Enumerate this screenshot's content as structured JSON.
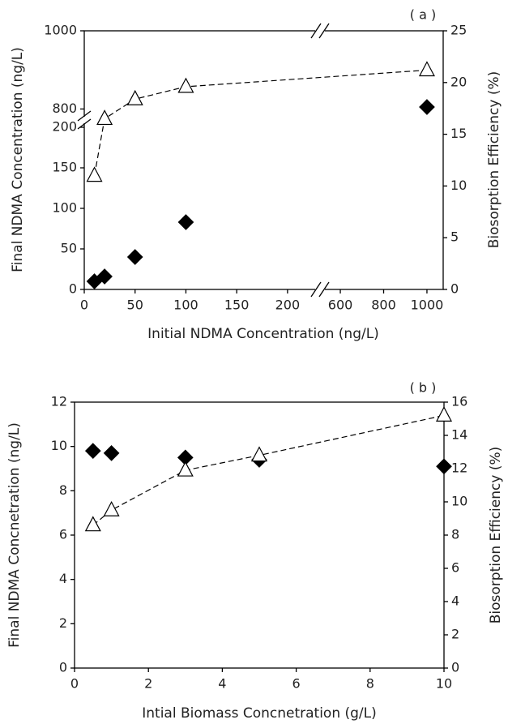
{
  "chart_data": [
    {
      "type": "scatter",
      "panel_label": "( a )",
      "x_label": "Initial NDMA Concentration (ng/L)",
      "y_label": "Final NDMA Concentration (ng/L)",
      "y2_label": "Biosorption Efficiency (%)",
      "x": [
        10,
        20,
        50,
        100,
        1000
      ],
      "x_segments": [
        {
          "xlim": [
            0,
            228
          ],
          "xticks": [
            0,
            50,
            100,
            150,
            200
          ]
        },
        {
          "xlim": [
            525,
            1075
          ],
          "xticks": [
            600,
            800,
            1000
          ]
        }
      ],
      "y_segments": [
        {
          "ylim": [
            0,
            207
          ],
          "yticks": [
            0,
            50,
            100,
            150,
            200
          ]
        },
        {
          "ylim": [
            776,
            1000
          ],
          "yticks": [
            800,
            1000
          ]
        }
      ],
      "y2lim": [
        0,
        25
      ],
      "y2ticks": [
        0,
        5,
        10,
        15,
        20,
        25
      ],
      "series": [
        {
          "marker": "diamond",
          "color": "#000000",
          "values": [
            10,
            16,
            40,
            83,
            805
          ]
        },
        {
          "marker": "triangle",
          "color": "#ffffff",
          "axis": "y2",
          "line": "dashed",
          "values": [
            11.0,
            16.5,
            18.4,
            19.6,
            21.2
          ]
        }
      ]
    },
    {
      "type": "scatter",
      "panel_label": "( b )",
      "x_label": "Intial Biomass Concnetration (g/L)",
      "y_label": "Final NDMA Concnetration (ng/L)",
      "y2_label": "Biosorption Efficiency (%)",
      "x": [
        0.5,
        1,
        3,
        5,
        10
      ],
      "xlim": [
        0,
        10
      ],
      "xticks": [
        0,
        2,
        4,
        6,
        8,
        10
      ],
      "ylim": [
        0,
        12
      ],
      "yticks": [
        0,
        2,
        4,
        6,
        8,
        10,
        12
      ],
      "y2lim": [
        0,
        16
      ],
      "y2ticks": [
        0,
        2,
        4,
        6,
        8,
        10,
        12,
        14,
        16
      ],
      "series": [
        {
          "marker": "diamond",
          "color": "#000000",
          "values": [
            9.8,
            9.7,
            9.5,
            9.4,
            9.1
          ]
        },
        {
          "marker": "triangle",
          "color": "#ffffff",
          "axis": "y2",
          "line": "dashed",
          "values": [
            8.6,
            9.5,
            11.9,
            12.8,
            15.2
          ]
        }
      ]
    }
  ]
}
